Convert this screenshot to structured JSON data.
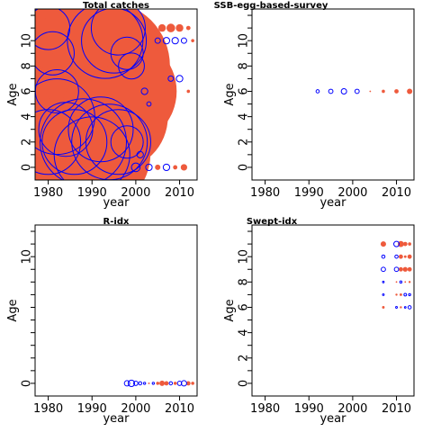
{
  "colors": {
    "positive": "#EE5A3C",
    "negative": "#0000FF",
    "axis": "#000000"
  },
  "chart_data": [
    {
      "type": "scatter",
      "style": "bubble residuals",
      "title": "Total catches",
      "xlabel": "year",
      "ylabel": "Age",
      "xlim": [
        1977,
        2014
      ],
      "ylim": [
        -1,
        12.5
      ],
      "xticks": [
        1980,
        1990,
        2000,
        2010
      ],
      "yticks": [
        0,
        2,
        4,
        6,
        8,
        10
      ],
      "points": [
        {
          "x": 1979,
          "y": 0,
          "r": 6,
          "s": "pos"
        },
        {
          "x": 1981,
          "y": 0,
          "r": 6,
          "s": "pos"
        },
        {
          "x": 1983,
          "y": 1,
          "r": 5,
          "s": "pos"
        },
        {
          "x": 1979,
          "y": 4,
          "r": 6,
          "s": "pos"
        },
        {
          "x": 1980,
          "y": 8,
          "r": 5,
          "s": "pos"
        },
        {
          "x": 1981,
          "y": 10,
          "r": 5,
          "s": "pos"
        },
        {
          "x": 1985,
          "y": 8,
          "r": 6,
          "s": "pos"
        },
        {
          "x": 1987,
          "y": 5,
          "r": 6,
          "s": "pos"
        },
        {
          "x": 1989,
          "y": 3,
          "r": 6,
          "s": "pos"
        },
        {
          "x": 1991,
          "y": 1,
          "r": 5,
          "s": "pos"
        },
        {
          "x": 1993,
          "y": 8,
          "r": 6,
          "s": "pos"
        },
        {
          "x": 1995,
          "y": 4,
          "r": 5,
          "s": "pos"
        },
        {
          "x": 1997,
          "y": 6,
          "r": 5,
          "s": "pos"
        },
        {
          "x": 1983,
          "y": 11,
          "r": 4,
          "s": "pos"
        },
        {
          "x": 1989,
          "y": 11,
          "r": 4,
          "s": "pos"
        },
        {
          "x": 1980,
          "y": 2,
          "r": 3,
          "s": "neg"
        },
        {
          "x": 1982,
          "y": 4,
          "r": 3.5,
          "s": "neg"
        },
        {
          "x": 1984,
          "y": 3,
          "r": 2.5,
          "s": "neg"
        },
        {
          "x": 1986,
          "y": 2,
          "r": 3,
          "s": "neg"
        },
        {
          "x": 1988,
          "y": 2,
          "r": 4,
          "s": "neg"
        },
        {
          "x": 1990,
          "y": 1,
          "r": 3.5,
          "s": "neg"
        },
        {
          "x": 1992,
          "y": 3,
          "r": 3,
          "s": "neg"
        },
        {
          "x": 1994,
          "y": 2,
          "r": 3.5,
          "s": "neg"
        },
        {
          "x": 1996,
          "y": 2,
          "r": 3,
          "s": "neg"
        },
        {
          "x": 1993,
          "y": 10,
          "r": 3.5,
          "s": "neg"
        },
        {
          "x": 1995,
          "y": 10,
          "r": 3,
          "s": "neg"
        },
        {
          "x": 1996,
          "y": 11,
          "r": 2.5,
          "s": "neg"
        },
        {
          "x": 1980,
          "y": 11,
          "r": 2,
          "s": "neg"
        },
        {
          "x": 1981,
          "y": 9,
          "r": 2,
          "s": "neg"
        },
        {
          "x": 1982,
          "y": 6,
          "r": 2,
          "s": "neg"
        },
        {
          "x": 1998,
          "y": 2,
          "r": 1.5,
          "s": "neg"
        },
        {
          "x": 1998,
          "y": 9,
          "r": 1.5,
          "s": "neg"
        },
        {
          "x": 1999,
          "y": 8,
          "r": 1.2,
          "s": "neg"
        },
        {
          "x": 2000,
          "y": 0,
          "r": 0.4,
          "s": "neg"
        },
        {
          "x": 2001,
          "y": 1,
          "r": 0.3,
          "s": "neg"
        },
        {
          "x": 2002,
          "y": 6,
          "r": 0.3,
          "s": "neg"
        },
        {
          "x": 2003,
          "y": 10,
          "r": 0.25,
          "s": "pos"
        },
        {
          "x": 2004,
          "y": 11,
          "r": 0.3,
          "s": "pos"
        },
        {
          "x": 2005,
          "y": 10,
          "r": 0.25,
          "s": "neg"
        },
        {
          "x": 2006,
          "y": 11,
          "r": 0.35,
          "s": "pos"
        },
        {
          "x": 2007,
          "y": 10,
          "r": 0.3,
          "s": "neg"
        },
        {
          "x": 2008,
          "y": 11,
          "r": 0.4,
          "s": "pos"
        },
        {
          "x": 2009,
          "y": 10,
          "r": 0.3,
          "s": "neg"
        },
        {
          "x": 2010,
          "y": 11,
          "r": 0.35,
          "s": "pos"
        },
        {
          "x": 2011,
          "y": 10,
          "r": 0.25,
          "s": "neg"
        },
        {
          "x": 2012,
          "y": 11,
          "r": 0.2,
          "s": "pos"
        },
        {
          "x": 2013,
          "y": 10,
          "r": 0.15,
          "s": "pos"
        },
        {
          "x": 2003,
          "y": 0,
          "r": 0.3,
          "s": "neg"
        },
        {
          "x": 2005,
          "y": 0,
          "r": 0.25,
          "s": "pos"
        },
        {
          "x": 2007,
          "y": 0,
          "r": 0.3,
          "s": "neg"
        },
        {
          "x": 2009,
          "y": 0,
          "r": 0.2,
          "s": "pos"
        },
        {
          "x": 2011,
          "y": 0,
          "r": 0.3,
          "s": "pos"
        },
        {
          "x": 2003,
          "y": 5,
          "r": 0.2,
          "s": "neg"
        },
        {
          "x": 2005,
          "y": 6,
          "r": 0.2,
          "s": "pos"
        },
        {
          "x": 2008,
          "y": 7,
          "r": 0.25,
          "s": "neg"
        },
        {
          "x": 2010,
          "y": 7,
          "r": 0.3,
          "s": "neg"
        },
        {
          "x": 2012,
          "y": 6,
          "r": 0.15,
          "s": "pos"
        }
      ]
    },
    {
      "type": "scatter",
      "style": "bubble residuals",
      "title": "SSB-egg-based-survey",
      "xlabel": "year",
      "ylabel": "Age",
      "xlim": [
        1977,
        2014
      ],
      "ylim": [
        -1,
        12.5
      ],
      "xticks": [
        1980,
        1990,
        2000,
        2010
      ],
      "yticks": [
        0,
        2,
        4,
        6,
        8,
        10
      ],
      "points": [
        {
          "x": 1992,
          "y": 6,
          "r": 0.15,
          "s": "neg"
        },
        {
          "x": 1995,
          "y": 6,
          "r": 0.2,
          "s": "neg"
        },
        {
          "x": 1998,
          "y": 6,
          "r": 0.25,
          "s": "neg"
        },
        {
          "x": 2001,
          "y": 6,
          "r": 0.2,
          "s": "neg"
        },
        {
          "x": 2004,
          "y": 6,
          "r": 0.03,
          "s": "pos"
        },
        {
          "x": 2007,
          "y": 6,
          "r": 0.15,
          "s": "pos"
        },
        {
          "x": 2010,
          "y": 6,
          "r": 0.2,
          "s": "pos"
        },
        {
          "x": 2013,
          "y": 6,
          "r": 0.25,
          "s": "pos"
        }
      ]
    },
    {
      "type": "scatter",
      "style": "bubble residuals",
      "title": "R-idx",
      "xlabel": "year",
      "ylabel": "Age",
      "xlim": [
        1977,
        2014
      ],
      "ylim": [
        -1,
        12.5
      ],
      "xticks": [
        1980,
        1990,
        2000,
        2010
      ],
      "yticks": [
        0,
        10
      ],
      "points": [
        {
          "x": 1998,
          "y": 0,
          "r": 0.25,
          "s": "neg"
        },
        {
          "x": 1999,
          "y": 0,
          "r": 0.3,
          "s": "neg"
        },
        {
          "x": 2000,
          "y": 0,
          "r": 0.2,
          "s": "neg"
        },
        {
          "x": 2001,
          "y": 0,
          "r": 0.15,
          "s": "neg"
        },
        {
          "x": 2002,
          "y": 0,
          "r": 0.1,
          "s": "neg"
        },
        {
          "x": 2003,
          "y": 0,
          "r": 0.08,
          "s": "pos"
        },
        {
          "x": 2004,
          "y": 0,
          "r": 0.1,
          "s": "neg"
        },
        {
          "x": 2005,
          "y": 0,
          "r": 0.15,
          "s": "pos"
        },
        {
          "x": 2006,
          "y": 0,
          "r": 0.25,
          "s": "pos"
        },
        {
          "x": 2007,
          "y": 0,
          "r": 0.2,
          "s": "pos"
        },
        {
          "x": 2008,
          "y": 0,
          "r": 0.15,
          "s": "neg"
        },
        {
          "x": 2009,
          "y": 0,
          "r": 0.15,
          "s": "pos"
        },
        {
          "x": 2010,
          "y": 0,
          "r": 0.2,
          "s": "neg"
        },
        {
          "x": 2011,
          "y": 0,
          "r": 0.25,
          "s": "neg"
        },
        {
          "x": 2012,
          "y": 0,
          "r": 0.2,
          "s": "pos"
        },
        {
          "x": 2013,
          "y": 0,
          "r": 0.15,
          "s": "pos"
        }
      ]
    },
    {
      "type": "scatter",
      "style": "bubble residuals",
      "title": "Swept-idx",
      "xlabel": "year",
      "ylabel": "Age",
      "xlim": [
        1977,
        2014
      ],
      "ylim": [
        -1,
        12.5
      ],
      "xticks": [
        1980,
        1990,
        2000,
        2010
      ],
      "yticks": [
        0,
        2,
        4,
        6,
        8,
        10
      ],
      "points": [
        {
          "x": 2007,
          "y": 6,
          "r": 0.12,
          "s": "pos"
        },
        {
          "x": 2007,
          "y": 7,
          "r": 0.08,
          "s": "neg"
        },
        {
          "x": 2007,
          "y": 8,
          "r": 0.04,
          "s": "neg"
        },
        {
          "x": 2007,
          "y": 9,
          "r": 0.2,
          "s": "neg"
        },
        {
          "x": 2007,
          "y": 10,
          "r": 0.15,
          "s": "neg"
        },
        {
          "x": 2007,
          "y": 11,
          "r": 0.25,
          "s": "pos"
        },
        {
          "x": 2010,
          "y": 6,
          "r": 0.08,
          "s": "neg"
        },
        {
          "x": 2010,
          "y": 7,
          "r": 0.1,
          "s": "pos"
        },
        {
          "x": 2010,
          "y": 8,
          "r": 0.05,
          "s": "pos"
        },
        {
          "x": 2010,
          "y": 9,
          "r": 0.2,
          "s": "neg"
        },
        {
          "x": 2010,
          "y": 10,
          "r": 0.15,
          "s": "neg"
        },
        {
          "x": 2010,
          "y": 11,
          "r": 0.25,
          "s": "neg"
        },
        {
          "x": 2011,
          "y": 6,
          "r": 0.1,
          "s": "pos"
        },
        {
          "x": 2011,
          "y": 7,
          "r": 0.12,
          "s": "pos"
        },
        {
          "x": 2011,
          "y": 8,
          "r": 0.1,
          "s": "neg"
        },
        {
          "x": 2011,
          "y": 9,
          "r": 0.2,
          "s": "pos"
        },
        {
          "x": 2011,
          "y": 10,
          "r": 0.2,
          "s": "pos"
        },
        {
          "x": 2011,
          "y": 11,
          "r": 0.28,
          "s": "pos"
        },
        {
          "x": 2012,
          "y": 6,
          "r": 0.05,
          "s": "neg"
        },
        {
          "x": 2012,
          "y": 7,
          "r": 0.12,
          "s": "neg"
        },
        {
          "x": 2012,
          "y": 8,
          "r": 0.05,
          "s": "pos"
        },
        {
          "x": 2012,
          "y": 9,
          "r": 0.22,
          "s": "pos"
        },
        {
          "x": 2012,
          "y": 10,
          "r": 0.12,
          "s": "pos"
        },
        {
          "x": 2012,
          "y": 11,
          "r": 0.2,
          "s": "pos"
        },
        {
          "x": 2013,
          "y": 6,
          "r": 0.15,
          "s": "neg"
        },
        {
          "x": 2013,
          "y": 7,
          "r": 0.1,
          "s": "neg"
        },
        {
          "x": 2013,
          "y": 8,
          "r": 0.1,
          "s": "pos"
        },
        {
          "x": 2013,
          "y": 9,
          "r": 0.2,
          "s": "pos"
        },
        {
          "x": 2013,
          "y": 10,
          "r": 0.2,
          "s": "pos"
        },
        {
          "x": 2013,
          "y": 11,
          "r": 0.15,
          "s": "pos"
        }
      ]
    }
  ]
}
